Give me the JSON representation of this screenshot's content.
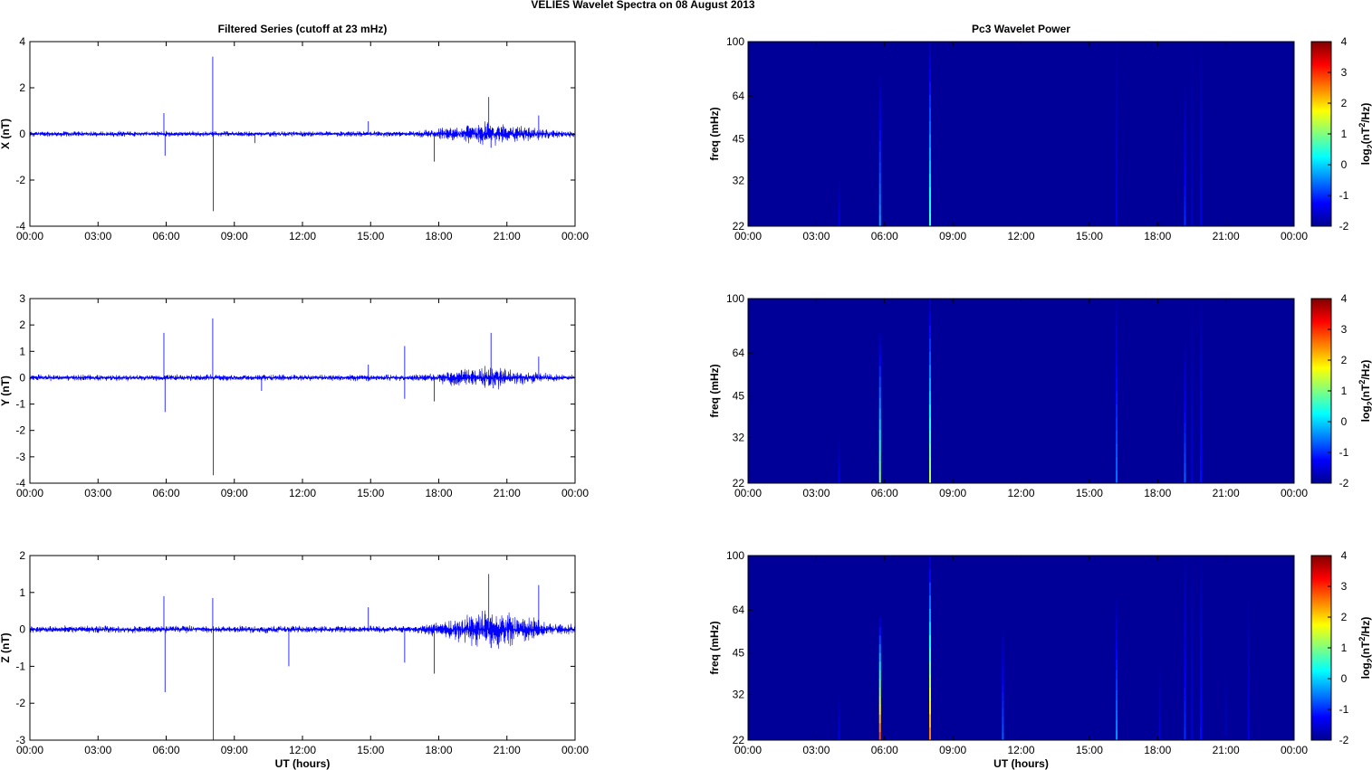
{
  "figure": {
    "title": "VELIES Wavelet Spectra on 08 August    2013",
    "left_title": "Filtered Series (cutoff at 23 mHz)",
    "right_title": "Pc3 Wavelet Power",
    "xlabel": "UT (hours)"
  },
  "chart_data": [
    {
      "type": "line",
      "title": "Filtered Series (cutoff at 23 mHz)",
      "ylabel": "X (nT)",
      "xlabel": "",
      "ylim": [
        -4,
        4
      ],
      "yticks": [
        -4,
        -2,
        0,
        2,
        4
      ],
      "xlim": [
        0,
        24
      ],
      "xticks": [
        "00:00",
        "03:00",
        "06:00",
        "09:00",
        "12:00",
        "15:00",
        "18:00",
        "21:00",
        "00:00"
      ],
      "line_color": "#0000ff",
      "noise_envelope": [
        [
          0,
          0.1
        ],
        [
          17,
          0.1
        ],
        [
          18,
          0.2
        ],
        [
          19,
          0.3
        ],
        [
          20,
          0.45
        ],
        [
          21,
          0.35
        ],
        [
          22,
          0.25
        ],
        [
          23,
          0.15
        ],
        [
          24,
          0.12
        ]
      ],
      "spikes": [
        [
          5.9,
          0.9
        ],
        [
          5.95,
          -0.95
        ],
        [
          8.05,
          3.35
        ],
        [
          8.07,
          -3.35
        ],
        [
          9.9,
          -0.4
        ],
        [
          14.9,
          0.55
        ],
        [
          17.8,
          -1.2
        ],
        [
          20.2,
          1.6
        ],
        [
          20.3,
          -0.6
        ],
        [
          22.4,
          0.8
        ]
      ]
    },
    {
      "type": "line",
      "ylabel": "Y (nT)",
      "xlabel": "",
      "ylim": [
        -4,
        3
      ],
      "yticks": [
        -4,
        -3,
        -2,
        -1,
        0,
        1,
        2,
        3
      ],
      "xlim": [
        0,
        24
      ],
      "xticks": [
        "00:00",
        "03:00",
        "06:00",
        "09:00",
        "12:00",
        "15:00",
        "18:00",
        "21:00",
        "00:00"
      ],
      "line_color": "#0000ff",
      "noise_envelope": [
        [
          0,
          0.1
        ],
        [
          17,
          0.1
        ],
        [
          18,
          0.18
        ],
        [
          19,
          0.3
        ],
        [
          20,
          0.4
        ],
        [
          21,
          0.3
        ],
        [
          22,
          0.2
        ],
        [
          23,
          0.12
        ],
        [
          24,
          0.1
        ]
      ],
      "spikes": [
        [
          5.9,
          1.7
        ],
        [
          5.95,
          -1.3
        ],
        [
          8.05,
          2.25
        ],
        [
          8.07,
          -3.7
        ],
        [
          10.2,
          -0.5
        ],
        [
          14.9,
          0.5
        ],
        [
          16.5,
          1.2
        ],
        [
          16.5,
          -0.8
        ],
        [
          17.8,
          -0.9
        ],
        [
          20.3,
          1.7
        ],
        [
          20.4,
          -0.4
        ],
        [
          22.4,
          0.8
        ]
      ]
    },
    {
      "type": "line",
      "ylabel": "Z (nT)",
      "xlabel": "UT (hours)",
      "ylim": [
        -3,
        2
      ],
      "yticks": [
        -3,
        -2,
        -1,
        0,
        1,
        2
      ],
      "xlim": [
        0,
        24
      ],
      "xticks": [
        "00:00",
        "03:00",
        "06:00",
        "09:00",
        "12:00",
        "15:00",
        "18:00",
        "21:00",
        "00:00"
      ],
      "line_color": "#0000ff",
      "noise_envelope": [
        [
          0,
          0.08
        ],
        [
          17,
          0.08
        ],
        [
          18,
          0.2
        ],
        [
          19,
          0.35
        ],
        [
          20,
          0.45
        ],
        [
          21,
          0.38
        ],
        [
          22,
          0.28
        ],
        [
          23,
          0.15
        ],
        [
          24,
          0.1
        ]
      ],
      "spikes": [
        [
          5.9,
          0.9
        ],
        [
          5.95,
          -1.7
        ],
        [
          8.05,
          0.85
        ],
        [
          8.07,
          -3.0
        ],
        [
          11.4,
          -1.0
        ],
        [
          14.9,
          0.6
        ],
        [
          16.5,
          -0.9
        ],
        [
          17.8,
          -1.2
        ],
        [
          20.2,
          1.5
        ],
        [
          20.3,
          -0.5
        ],
        [
          22.4,
          1.2
        ]
      ]
    },
    {
      "type": "heatmap",
      "title": "Pc3 Wavelet Power",
      "ylabel": "freq (mHz)",
      "xlabel": "",
      "yscale": "log",
      "ylim": [
        22,
        100
      ],
      "yticks": [
        22,
        32,
        45,
        64,
        100
      ],
      "xlim": [
        0,
        24
      ],
      "xticks": [
        "00:00",
        "03:00",
        "06:00",
        "09:00",
        "12:00",
        "15:00",
        "18:00",
        "21:00",
        "00:00"
      ],
      "colorbar": {
        "label": "log2(nT^2/Hz)",
        "range": [
          -2,
          4
        ],
        "ticks": [
          -2,
          -1,
          0,
          1,
          2,
          3,
          4
        ]
      },
      "background_value": -1.85,
      "streaks": [
        {
          "t": 4.0,
          "f_top": 32,
          "peak": -1.4
        },
        {
          "t": 5.8,
          "f_top": 75,
          "peak": -0.3
        },
        {
          "t": 8.0,
          "f_top": 100,
          "peak": 0.6
        },
        {
          "t": 16.2,
          "f_top": 100,
          "peak": -1.4
        },
        {
          "t": 19.2,
          "f_top": 70,
          "peak": -1.0
        },
        {
          "t": 19.5,
          "f_top": 100,
          "peak": -1.6
        },
        {
          "t": 19.9,
          "f_top": 100,
          "peak": -1.4
        }
      ]
    },
    {
      "type": "heatmap",
      "ylabel": "freq (mHz)",
      "xlabel": "",
      "yscale": "log",
      "ylim": [
        22,
        100
      ],
      "yticks": [
        22,
        32,
        45,
        64,
        100
      ],
      "xlim": [
        0,
        24
      ],
      "xticks": [
        "00:00",
        "03:00",
        "06:00",
        "09:00",
        "12:00",
        "15:00",
        "18:00",
        "21:00",
        "00:00"
      ],
      "colorbar": {
        "label": "log2(nT^2/Hz)",
        "range": [
          -2,
          4
        ],
        "ticks": [
          -2,
          -1,
          0,
          1,
          2,
          3,
          4
        ]
      },
      "background_value": -1.85,
      "streaks": [
        {
          "t": 4.0,
          "f_top": 32,
          "peak": -1.4
        },
        {
          "t": 5.8,
          "f_top": 75,
          "peak": 1.0
        },
        {
          "t": 8.0,
          "f_top": 100,
          "peak": 1.3
        },
        {
          "t": 16.2,
          "f_top": 100,
          "peak": -0.6
        },
        {
          "t": 19.2,
          "f_top": 70,
          "peak": -0.7
        },
        {
          "t": 19.5,
          "f_top": 100,
          "peak": -1.5
        },
        {
          "t": 19.9,
          "f_top": 100,
          "peak": -1.2
        }
      ]
    },
    {
      "type": "heatmap",
      "ylabel": "freq (mHz)",
      "xlabel": "UT (hours)",
      "yscale": "log",
      "ylim": [
        22,
        100
      ],
      "yticks": [
        22,
        32,
        45,
        64,
        100
      ],
      "xlim": [
        0,
        24
      ],
      "xticks": [
        "00:00",
        "03:00",
        "06:00",
        "09:00",
        "12:00",
        "15:00",
        "18:00",
        "21:00",
        "00:00"
      ],
      "colorbar": {
        "label": "log2(nT^2/Hz)",
        "range": [
          -2,
          4
        ],
        "ticks": [
          -2,
          -1,
          0,
          1,
          2,
          3,
          4
        ]
      },
      "background_value": -1.85,
      "streaks": [
        {
          "t": 4.0,
          "f_top": 32,
          "peak": -1.4
        },
        {
          "t": 5.8,
          "f_top": 60,
          "peak": 2.8
        },
        {
          "t": 8.0,
          "f_top": 100,
          "peak": 2.5
        },
        {
          "t": 11.2,
          "f_top": 55,
          "peak": -0.7
        },
        {
          "t": 16.2,
          "f_top": 70,
          "peak": -0.4
        },
        {
          "t": 18.1,
          "f_top": 40,
          "peak": -1.5
        },
        {
          "t": 19.2,
          "f_top": 100,
          "peak": -1.0
        },
        {
          "t": 19.5,
          "f_top": 100,
          "peak": -1.5
        },
        {
          "t": 19.9,
          "f_top": 100,
          "peak": -1.2
        },
        {
          "t": 21.0,
          "f_top": 38,
          "peak": -1.6
        },
        {
          "t": 22.0,
          "f_top": 70,
          "peak": -1.4
        }
      ]
    }
  ]
}
